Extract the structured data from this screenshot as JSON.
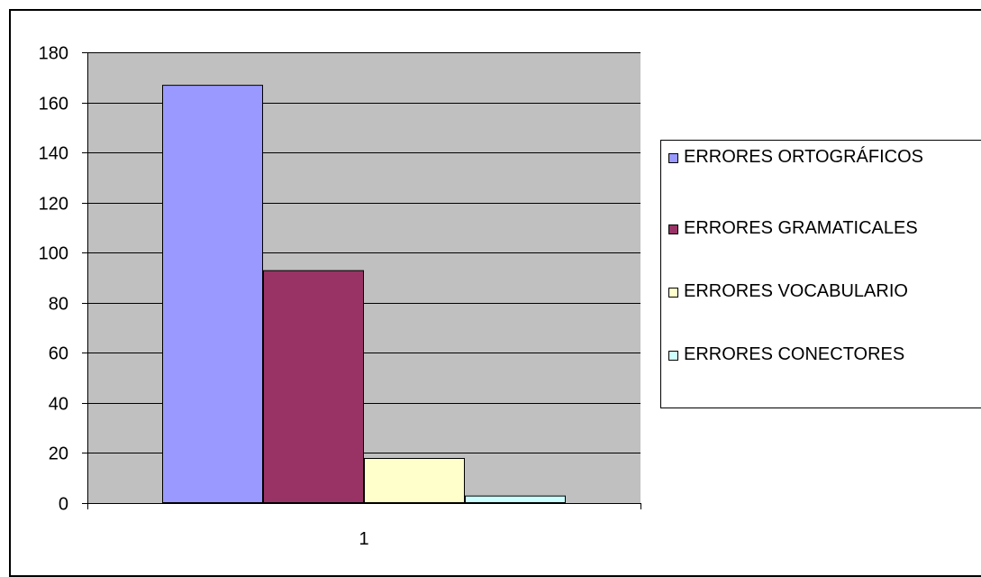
{
  "chart_data": {
    "type": "bar",
    "categories": [
      "1"
    ],
    "series": [
      {
        "name": "ERRORES ORTOGRÁFICOS",
        "values": [
          167
        ],
        "color": "#9999ff"
      },
      {
        "name": "ERRORES GRAMATICALES",
        "values": [
          93
        ],
        "color": "#993366"
      },
      {
        "name": "ERRORES VOCABULARIO",
        "values": [
          18
        ],
        "color": "#ffffcc"
      },
      {
        "name": "ERRORES CONECTORES",
        "values": [
          3
        ],
        "color": "#ccffff"
      }
    ],
    "title": "",
    "xlabel": "",
    "ylabel": "",
    "ylim": [
      0,
      180
    ],
    "yticks": [
      0,
      20,
      40,
      60,
      80,
      100,
      120,
      140,
      160,
      180
    ],
    "grid": true,
    "plot_background": "#c0c0c0",
    "legend_position": "right"
  }
}
